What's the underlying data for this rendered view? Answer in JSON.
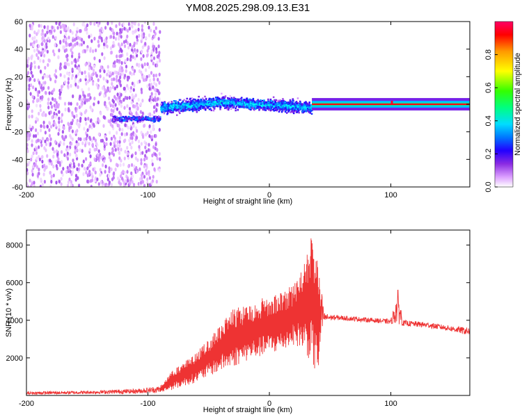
{
  "title": "YM08.2025.298.09.13.E31",
  "chart_data": [
    {
      "type": "heatmap",
      "name": "spectrogram",
      "xlabel": "Height of straight line (km)",
      "ylabel": "Frequency (Hz)",
      "xlim": [
        -200,
        165
      ],
      "ylim": [
        -60,
        60
      ],
      "xticks": [
        -200,
        -100,
        0,
        100
      ],
      "yticks": [
        -60,
        -40,
        -20,
        0,
        20,
        40,
        60
      ],
      "colorbar": {
        "label": "Normalized spectral amplitude",
        "range": [
          0,
          1
        ],
        "ticks": [
          "0.0",
          "0.2",
          "0.4",
          "0.6",
          "0.8"
        ],
        "colors": [
          "#ffffff",
          "#dca0ff",
          "#8a2be2",
          "#2200ff",
          "#00aaff",
          "#00ffff",
          "#00ff40",
          "#ffff00",
          "#ff9900",
          "#ff0000",
          "#ff0066"
        ]
      },
      "segments": [
        {
          "x_range": [
            -200,
            -90
          ],
          "description_level": "noise",
          "amplitude": 0.12
        },
        {
          "x_range": [
            -130,
            -90
          ],
          "center_hz": -10,
          "amplitude": 0.35
        },
        {
          "x_range": [
            -90,
            35
          ],
          "center_hz": 0,
          "amplitude": 0.4
        },
        {
          "x_range": [
            35,
            165
          ],
          "center_hz": 0,
          "amplitude": 0.95
        }
      ]
    },
    {
      "type": "line",
      "name": "snr",
      "xlabel": "Height of straight line (km)",
      "ylabel": "SNR (10 * v/v)",
      "xlim": [
        -200,
        165
      ],
      "ylim": [
        0,
        8800
      ],
      "xticks": [
        -200,
        -100,
        0,
        100
      ],
      "yticks": [
        2000,
        4000,
        6000,
        8000
      ],
      "series": [
        {
          "name": "SNR",
          "color": "#ee3333",
          "envelope_x": [
            -200,
            -150,
            -110,
            -90,
            -80,
            -70,
            -60,
            -50,
            -40,
            -30,
            -20,
            -10,
            0,
            10,
            20,
            30,
            35,
            40,
            45,
            50,
            60,
            80,
            100,
            106,
            110,
            130,
            150,
            165
          ],
          "envelope_low": [
            50,
            80,
            100,
            150,
            300,
            500,
            700,
            1000,
            1300,
            1500,
            1800,
            2000,
            2200,
            2300,
            2700,
            2300,
            1500,
            1000,
            3900,
            4000,
            4000,
            3900,
            3800,
            3800,
            3700,
            3600,
            3400,
            3200
          ],
          "envelope_high": [
            200,
            250,
            350,
            500,
            1300,
            1800,
            2300,
            3000,
            3800,
            4600,
            4800,
            5100,
            5300,
            5500,
            5900,
            7300,
            8600,
            7400,
            4400,
            4300,
            4250,
            4150,
            4050,
            5700,
            4000,
            3900,
            3700,
            3600
          ]
        }
      ]
    }
  ]
}
